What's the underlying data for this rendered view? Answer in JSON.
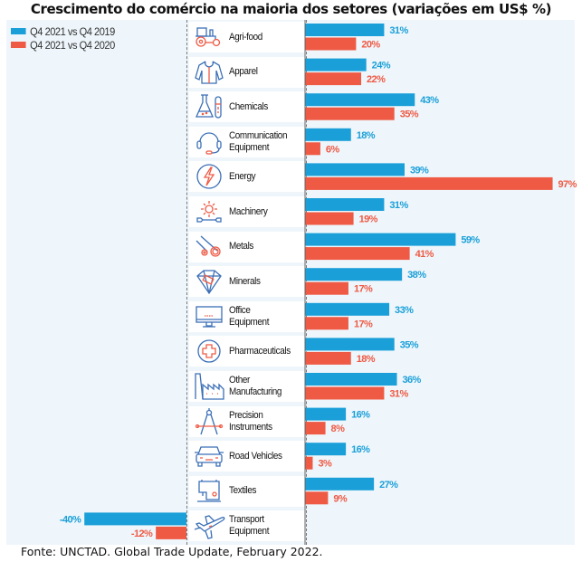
{
  "title": "Crescimento do comércio na maioria dos setores (variações em US$ %)",
  "source": "Fonte: UNCTAD. Global Trade Update, February 2022.",
  "colors": {
    "series1": "#1a9fd8",
    "series2": "#ef5a45",
    "panel_bg": "#eef6fb",
    "icon_blue": "#3b6fb6",
    "icon_red": "#ef5a45"
  },
  "legend": [
    {
      "label": "Q4 2021 vs Q4 2019",
      "color": "#1a9fd8"
    },
    {
      "label": "Q4 2021 vs Q4 2020",
      "color": "#ef5a45"
    }
  ],
  "chart_data": {
    "type": "bar",
    "orientation": "horizontal",
    "title": "Crescimento do comércio na maioria dos setores (variações em US$ %)",
    "xlabel": "",
    "ylabel": "",
    "unit": "%",
    "legend_position": "top-left",
    "grid": false,
    "categories": [
      "Agri-food",
      "Apparel",
      "Chemicals",
      "Communication Equipment",
      "Energy",
      "Machinery",
      "Metals",
      "Minerals",
      "Office Equipment",
      "Pharmaceuticals",
      "Other Manufacturing",
      "Precision Instruments",
      "Road Vehicles",
      "Textiles",
      "Transport Equipment"
    ],
    "category_display": [
      "Agri-food",
      "Apparel",
      "Chemicals",
      "Communication\nEquipment",
      "Energy",
      "Machinery",
      "Metals",
      "Minerals",
      "Office\nEquipment",
      "Pharmaceuticals",
      "Other\nManufacturing",
      "Precision\nInstruments",
      "Road Vehicles",
      "Textiles",
      "Transport\nEquipment"
    ],
    "icons": [
      "tractor-icon",
      "jacket-icon",
      "flask-icon",
      "headset-icon",
      "lightning-icon",
      "gear-wrench-icon",
      "metal-rolls-icon",
      "gem-icon",
      "monitor-icon",
      "medical-cross-icon",
      "factory-icon",
      "compass-icon",
      "car-icon",
      "sewing-machine-icon",
      "airplane-icon"
    ],
    "series": [
      {
        "name": "Q4 2021 vs Q4 2019",
        "color": "#1a9fd8",
        "values": [
          31,
          24,
          43,
          18,
          39,
          31,
          59,
          38,
          33,
          35,
          36,
          16,
          16,
          27,
          -40
        ]
      },
      {
        "name": "Q4 2021 vs Q4 2020",
        "color": "#ef5a45",
        "values": [
          20,
          22,
          35,
          6,
          97,
          19,
          41,
          17,
          17,
          18,
          31,
          8,
          3,
          9,
          -12
        ]
      }
    ],
    "value_labels": [
      [
        "31%",
        "24%",
        "43%",
        "18%",
        "39%",
        "31%",
        "59%",
        "38%",
        "33%",
        "35%",
        "36%",
        "16%",
        "16%",
        "27%",
        "-40%"
      ],
      [
        "20%",
        "22%",
        "35%",
        "6%",
        "97%",
        "19%",
        "41%",
        "17%",
        "17%",
        "18%",
        "31%",
        "8%",
        "3%",
        "9%",
        "-12%"
      ]
    ],
    "xlim": [
      -40,
      97
    ]
  }
}
